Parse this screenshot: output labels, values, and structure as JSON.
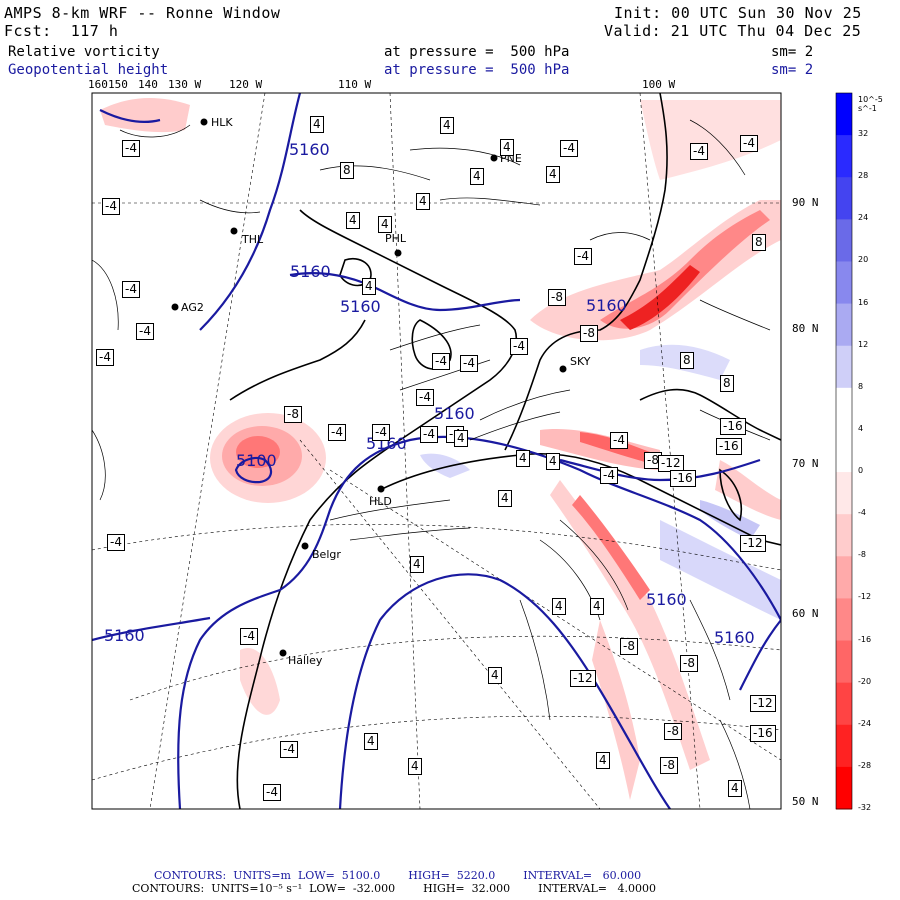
{
  "header": {
    "model": "AMPS 8-km WRF -- Ronne Window",
    "forecast": "Fcst:  117 h",
    "init": "Init: 00 UTC Sun 30 Nov 25",
    "valid": "Valid: 21 UTC Thu 04 Dec 25",
    "field1_name": "Relative vorticity",
    "field1_level": "at pressure =  500 hPa",
    "field1_sm": "sm= 2",
    "field2_name": "Geopotential height",
    "field2_level": "at pressure =  500 hPa",
    "field2_sm": "sm= 2"
  },
  "lon_labels": [
    "160",
    "150",
    "140",
    "130 W",
    "120 W",
    "110 W",
    "100 W"
  ],
  "lat_labels": [
    "90 N",
    "80 N",
    "70 N",
    "60 N",
    "50 N"
  ],
  "stations": [
    "HLK",
    "PNE",
    "THL",
    "PHL",
    "AG2",
    "SKY",
    "HLD",
    "Belgr",
    "Halley"
  ],
  "height_labels": [
    "5160",
    "5160",
    "5160",
    "5160",
    "5160",
    "5160",
    "5160",
    "5160",
    "5100",
    "5160"
  ],
  "vort_labels": {
    "neg": [
      "-4",
      "-4",
      "-4",
      "-4",
      "-4",
      "-4",
      "-4",
      "-4",
      "-4",
      "-4",
      "-4",
      "-4",
      "-4",
      "-4",
      "-4",
      "-4",
      "-4",
      "-4",
      "-4",
      "-4",
      "-4",
      "-4",
      "-4",
      "-8",
      "-8",
      "-8",
      "-8",
      "-8",
      "-8",
      "-8",
      "-8",
      "-12",
      "-12",
      "-12",
      "-12",
      "-16",
      "-16",
      "-16",
      "-16"
    ],
    "pos": [
      "4",
      "4",
      "4",
      "4",
      "4",
      "4",
      "4",
      "4",
      "4",
      "4",
      "4",
      "4",
      "4",
      "4",
      "4",
      "4",
      "4",
      "4",
      "4",
      "4",
      "4",
      "8",
      "8",
      "8",
      "8"
    ]
  },
  "colorbar": {
    "unit": "10^-5 s^-1",
    "ticks": [
      "32",
      "28",
      "24",
      "20",
      "16",
      "12",
      "8",
      "4",
      "0",
      "-4",
      "-8",
      "-12",
      "-16",
      "-20",
      "-24",
      "-28",
      "-32"
    ],
    "colors": [
      "#0000ff",
      "#2a2aff",
      "#4444f0",
      "#6a6ae8",
      "#8888ee",
      "#aaaaf2",
      "#cfcff8",
      "#ffffff",
      "#ffffff",
      "#ffe8e8",
      "#ffcccc",
      "#ffaaaa",
      "#ff8888",
      "#ff6666",
      "#ff4444",
      "#ff2222",
      "#ff0000"
    ]
  },
  "footer": {
    "line1": "CONTOURS:  UNITS=m  LOW=  5100.0        HIGH=  5220.0        INTERVAL=   60.000",
    "line2": "CONTOURS:  UNITS=10⁻⁵ s⁻¹  LOW=  -32.000        HIGH=  32.000        INTERVAL=   4.0000"
  }
}
